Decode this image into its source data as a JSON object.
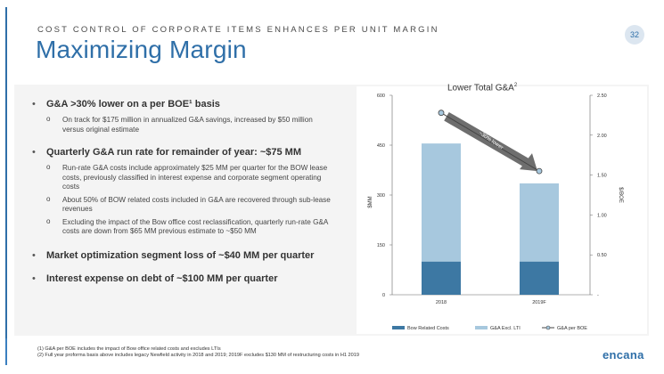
{
  "header": {
    "kicker": "COST CONTROL OF CORPORATE ITEMS ENHANCES PER UNIT MARGIN",
    "title": "Maximizing Margin",
    "page_number": "32"
  },
  "bullets": [
    {
      "text": "G&A >30% lower on a per BOE¹ basis",
      "sub": [
        "On track for $175 million in annualized G&A savings, increased by $50 million versus original estimate"
      ]
    },
    {
      "text": "Quarterly G&A run rate for remainder of year: ~$75 MM",
      "sub": [
        "Run-rate G&A costs include approximately $25 MM per quarter for the BOW lease costs, previously classified in interest expense and corporate segment operating costs",
        "About 50% of BOW related costs included in G&A are recovered through sub-lease revenues",
        "Excluding the impact of the Bow office cost reclassification, quarterly run-rate G&A costs are down from $65 MM previous estimate to ~$50 MM"
      ]
    },
    {
      "text": "Market optimization segment loss of ~$40 MM per quarter",
      "sub": []
    },
    {
      "text": "Interest expense on debt of ~$100 MM per quarter",
      "sub": []
    }
  ],
  "chart_data": {
    "type": "bar",
    "title": "Lower Total G&A",
    "title_sup": "2",
    "categories": [
      "2018",
      "2019F"
    ],
    "series": [
      {
        "name": "Bow Related Costs",
        "values": [
          100,
          100
        ],
        "color": "#3d78a3"
      },
      {
        "name": "G&A Excl. LTI",
        "values": [
          355,
          235
        ],
        "color": "#a7c8de"
      }
    ],
    "line_series": {
      "name": "G&A per BOE",
      "values": [
        2.28,
        1.55
      ],
      "color": "#444444"
    },
    "annotation": "~30% lower",
    "ylabel": "$MM",
    "y2label": "$/BOE",
    "ylim": [
      0,
      600
    ],
    "y2lim": [
      0,
      2.5
    ],
    "yticks": [
      "0",
      "150",
      "300",
      "450",
      "600"
    ],
    "y2ticks": [
      "-",
      "0.50",
      "1.00",
      "1.50",
      "2.00",
      "2.50"
    ],
    "legend_position": "bottom"
  },
  "footnotes": [
    "(1) G&A per BOE includes the impact of Bow office related costs and excludes LTIs",
    "(2) Full year proforma basis above includes legacy Newfield activity in 2018 and 2019; 2019F excludes $130 MM of restructuring costs in H1 2019"
  ],
  "logo": "encana"
}
